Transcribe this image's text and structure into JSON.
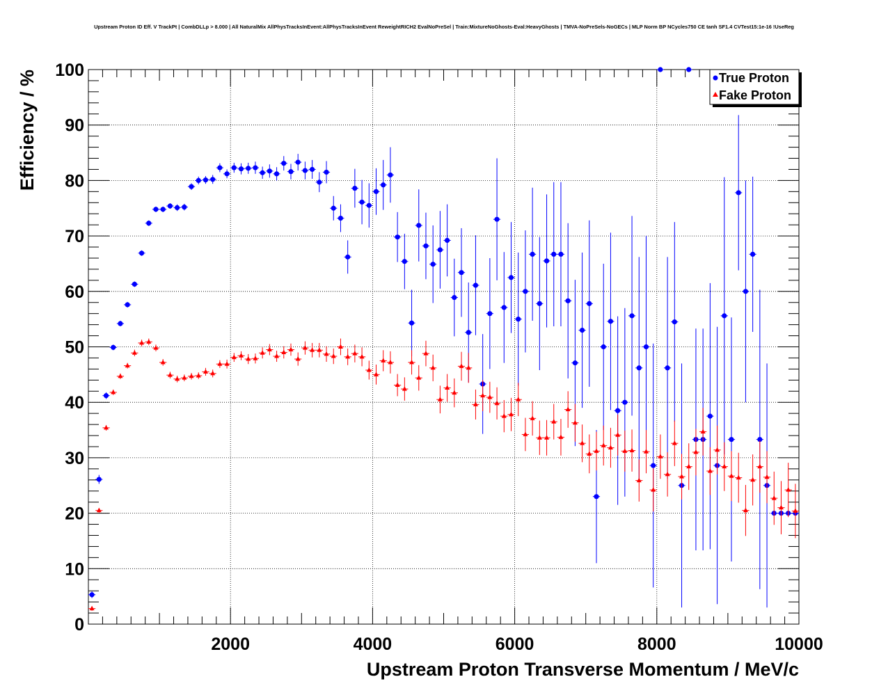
{
  "chart_data": {
    "type": "scatter",
    "title": "Upstream Proton ID Eff. V TrackPt | CombDLLp > 8.000 | All NaturalMix AllPhysTracksInEvent:AllPhysTracksInEvent ReweightRICH2 EvalNoPreSel | Train:MixtureNoGhosts-Eval:HeavyGhosts | TMVA-NoPreSels-NoGECs | MLP Norm BP NCycles750 CE tanh SF1.4 CVTest15:1e-16 !UseReg",
    "xlabel": "Upstream Proton Transverse Momentum / MeV/c",
    "ylabel": "Efficiency / %",
    "xlim": [
      0,
      10000
    ],
    "ylim": [
      0,
      100
    ],
    "xticks": [
      2000,
      4000,
      6000,
      8000,
      10000
    ],
    "yticks": [
      0,
      10,
      20,
      30,
      40,
      50,
      60,
      70,
      80,
      90,
      100
    ],
    "grid": true,
    "legend_position": "top-right",
    "series": [
      {
        "name": "True Proton",
        "color": "#0000ff",
        "marker": "circle",
        "x": [
          50,
          150,
          250,
          350,
          450,
          550,
          650,
          750,
          850,
          950,
          1050,
          1150,
          1250,
          1350,
          1450,
          1550,
          1650,
          1750,
          1850,
          1950,
          2050,
          2150,
          2250,
          2350,
          2450,
          2550,
          2650,
          2750,
          2850,
          2950,
          3050,
          3150,
          3250,
          3350,
          3450,
          3550,
          3650,
          3750,
          3850,
          3950,
          4050,
          4150,
          4250,
          4350,
          4450,
          4550,
          4650,
          4750,
          4850,
          4950,
          5050,
          5150,
          5250,
          5350,
          5450,
          5550,
          5650,
          5750,
          5850,
          5950,
          6050,
          6150,
          6250,
          6350,
          6450,
          6550,
          6650,
          6750,
          6850,
          6950,
          7050,
          7150,
          7250,
          7350,
          7450,
          7550,
          7650,
          7750,
          7850,
          7950,
          8050,
          8150,
          8250,
          8350,
          8450,
          8550,
          8650,
          8750,
          8850,
          8950,
          9050,
          9150,
          9250,
          9350,
          9450,
          9550,
          9650,
          9750,
          9850,
          9950
        ],
        "y": [
          5.3,
          26.1,
          41.2,
          49.9,
          54.2,
          57.6,
          61.3,
          66.9,
          72.3,
          74.8,
          74.8,
          75.4,
          75.1,
          75.2,
          78.9,
          80.0,
          80.1,
          80.2,
          82.3,
          81.2,
          82.3,
          82.1,
          82.2,
          82.3,
          81.4,
          81.7,
          81.2,
          83.1,
          81.6,
          83.3,
          81.8,
          82.0,
          79.7,
          81.5,
          75.0,
          73.2,
          66.2,
          78.6,
          76.1,
          75.5,
          78.0,
          79.2,
          81.0,
          69.8,
          65.4,
          54.3,
          71.9,
          68.2,
          64.9,
          67.5,
          69.2,
          58.9,
          63.4,
          52.6,
          61.1,
          43.3,
          56.0,
          73.0,
          57.1,
          62.5,
          55.0,
          60.0,
          66.7,
          57.8,
          65.5,
          66.7,
          66.7,
          58.3,
          47.1,
          53.0,
          57.8,
          23.0,
          50.0,
          54.6,
          38.5,
          40.0,
          55.6,
          46.2,
          50.0,
          28.6,
          100.0,
          46.2,
          54.5,
          25.0,
          100.0,
          33.3,
          33.3,
          37.5,
          28.6,
          55.6,
          33.3,
          77.8,
          60.0,
          66.7,
          33.3,
          25.0,
          20.0,
          20.0,
          20.0,
          20.0
        ],
        "yerr": [
          0.6,
          0.8,
          0.6,
          0.5,
          0.5,
          0.5,
          0.5,
          0.5,
          0.5,
          0.5,
          0.5,
          0.5,
          0.6,
          0.6,
          0.6,
          0.7,
          0.7,
          0.8,
          0.8,
          0.8,
          0.9,
          1.0,
          1.0,
          1.1,
          1.1,
          1.2,
          1.2,
          1.3,
          1.4,
          1.5,
          1.6,
          1.7,
          1.8,
          2.0,
          2.2,
          2.5,
          3.0,
          3.5,
          4.0,
          4.0,
          4.2,
          4.5,
          5.0,
          4.5,
          5.0,
          6.0,
          6.5,
          6.0,
          7.0,
          7.0,
          6.5,
          7.0,
          8.0,
          9.0,
          9.0,
          9.0,
          10.0,
          11.0,
          10.0,
          10.0,
          12.0,
          11.0,
          12.0,
          12.0,
          12.0,
          13.0,
          13.0,
          14.0,
          15.0,
          14.0,
          15.0,
          12.0,
          15.0,
          16.0,
          17.0,
          17.0,
          18.0,
          20.0,
          20.0,
          22.0,
          0,
          20.0,
          18.0,
          22.0,
          0,
          20.0,
          20.0,
          24.0,
          25.0,
          25.0,
          22.0,
          14.0,
          20.0,
          14.0,
          27.0,
          22.0,
          0,
          0,
          0,
          0
        ]
      },
      {
        "name": "Fake Proton",
        "color": "#ff0000",
        "marker": "triangle",
        "x": [
          50,
          150,
          250,
          350,
          450,
          550,
          650,
          750,
          850,
          950,
          1050,
          1150,
          1250,
          1350,
          1450,
          1550,
          1650,
          1750,
          1850,
          1950,
          2050,
          2150,
          2250,
          2350,
          2450,
          2550,
          2650,
          2750,
          2850,
          2950,
          3050,
          3150,
          3250,
          3350,
          3450,
          3550,
          3650,
          3750,
          3850,
          3950,
          4050,
          4150,
          4250,
          4350,
          4450,
          4550,
          4650,
          4750,
          4850,
          4950,
          5050,
          5150,
          5250,
          5350,
          5450,
          5550,
          5650,
          5750,
          5850,
          5950,
          6050,
          6150,
          6250,
          6350,
          6450,
          6550,
          6650,
          6750,
          6850,
          6950,
          7050,
          7150,
          7250,
          7350,
          7450,
          7550,
          7650,
          7750,
          7850,
          7950,
          8050,
          8150,
          8250,
          8350,
          8450,
          8550,
          8650,
          8750,
          8850,
          8950,
          9050,
          9150,
          9250,
          9350,
          9450,
          9550,
          9650,
          9750,
          9850,
          9950
        ],
        "y": [
          2.8,
          20.5,
          35.4,
          41.8,
          44.7,
          46.6,
          48.9,
          50.7,
          50.9,
          49.8,
          47.2,
          44.9,
          44.2,
          44.4,
          44.7,
          44.8,
          45.5,
          45.2,
          46.9,
          46.9,
          48.1,
          48.4,
          47.8,
          47.9,
          48.9,
          49.5,
          48.3,
          49.0,
          49.5,
          47.8,
          49.8,
          49.4,
          49.4,
          48.7,
          48.3,
          50.0,
          48.2,
          48.8,
          48.2,
          45.8,
          45.0,
          47.5,
          47.2,
          43.1,
          42.4,
          47.2,
          44.4,
          48.8,
          46.2,
          40.5,
          42.6,
          41.7,
          46.5,
          46.2,
          39.6,
          41.2,
          40.9,
          39.8,
          37.5,
          37.8,
          40.5,
          34.2,
          37.1,
          33.6,
          33.6,
          36.5,
          33.7,
          38.7,
          36.3,
          32.6,
          30.7,
          31.2,
          32.2,
          31.8,
          34.1,
          31.2,
          31.3,
          25.9,
          31.1,
          24.2,
          30.2,
          27.0,
          32.6,
          26.6,
          28.4,
          31.0,
          34.7,
          27.6,
          31.4,
          28.4,
          26.7,
          26.4,
          20.5,
          26.0,
          28.4,
          26.5,
          22.7,
          21.0,
          24.2,
          20.4
        ],
        "yerr": [
          0.4,
          0.4,
          0.5,
          0.5,
          0.5,
          0.5,
          0.6,
          0.6,
          0.6,
          0.6,
          0.6,
          0.6,
          0.6,
          0.6,
          0.6,
          0.6,
          0.7,
          0.7,
          0.7,
          0.8,
          0.8,
          0.8,
          0.9,
          0.9,
          1.0,
          1.0,
          1.0,
          1.1,
          1.1,
          1.2,
          1.2,
          1.3,
          1.3,
          1.4,
          1.4,
          1.5,
          1.5,
          1.6,
          1.7,
          1.7,
          1.8,
          1.9,
          2.0,
          2.0,
          2.1,
          2.2,
          2.3,
          2.3,
          2.4,
          2.5,
          2.5,
          2.6,
          2.6,
          2.7,
          2.7,
          2.8,
          2.8,
          2.9,
          2.9,
          3.0,
          3.0,
          3.0,
          3.1,
          3.1,
          3.2,
          3.2,
          3.3,
          3.3,
          3.4,
          3.4,
          3.5,
          3.5,
          3.6,
          3.6,
          3.7,
          3.7,
          3.8,
          3.8,
          3.9,
          3.9,
          4.0,
          4.0,
          4.1,
          4.1,
          4.2,
          4.2,
          4.3,
          4.3,
          4.4,
          4.4,
          4.5,
          4.5,
          4.6,
          4.6,
          4.7,
          4.7,
          4.8,
          4.8,
          4.9,
          4.9
        ]
      }
    ]
  }
}
